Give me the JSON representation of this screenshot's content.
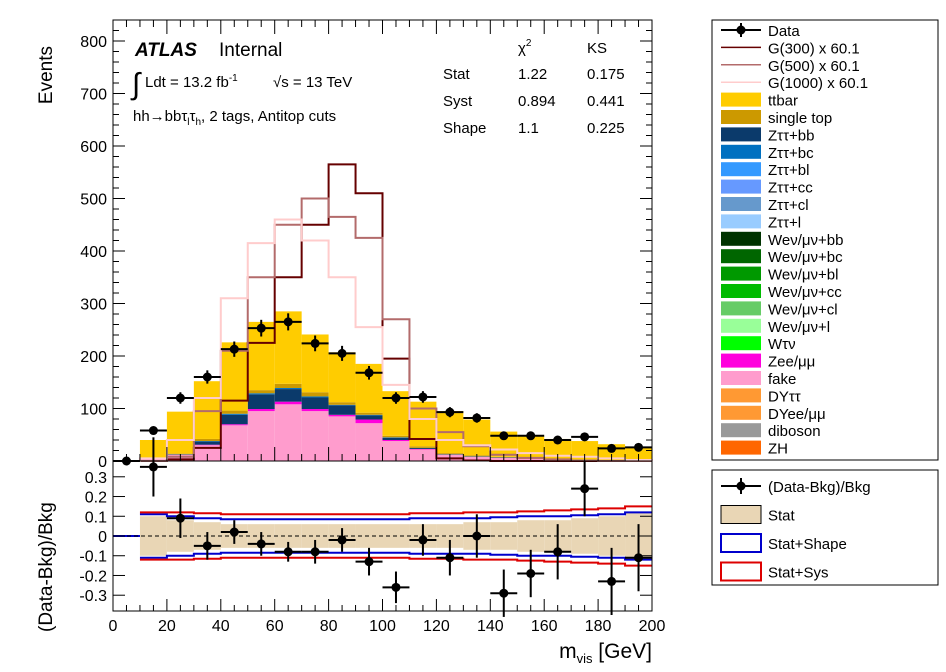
{
  "chart_data": [
    {
      "type": "bar",
      "panel": "main",
      "stacked": true,
      "ylabel": "Events",
      "ylim": [
        0,
        840
      ],
      "yticks": [
        0,
        100,
        200,
        300,
        400,
        500,
        600,
        700,
        800
      ],
      "x_bin_edges": [
        0,
        10,
        20,
        30,
        40,
        50,
        60,
        70,
        80,
        90,
        100,
        110,
        120,
        130,
        140,
        150,
        160,
        170,
        180,
        190,
        200
      ],
      "background_stack": [
        {
          "name": "fake",
          "color": "#ff9ccd",
          "values": [
            0,
            5,
            12,
            30,
            68,
            95,
            108,
            95,
            85,
            72,
            38,
            22,
            12,
            8,
            6,
            4,
            3,
            2,
            1,
            1
          ]
        },
        {
          "name": "Zee/μμ",
          "color": "#ff00dd",
          "values": [
            0,
            0,
            0,
            1,
            2,
            4,
            5,
            4,
            3,
            7,
            2,
            1,
            0,
            0,
            0,
            0,
            0,
            0,
            0,
            0
          ]
        },
        {
          "name": "Zττ+bb",
          "color": "#0b3a6b",
          "values": [
            0,
            0,
            1,
            6,
            18,
            28,
            24,
            22,
            18,
            8,
            4,
            2,
            1,
            1,
            1,
            0,
            0,
            0,
            0,
            0
          ]
        },
        {
          "name": "Zττ+bc",
          "color": "#0070c0",
          "values": [
            0,
            0,
            0,
            1,
            2,
            2,
            2,
            2,
            1,
            1,
            1,
            0,
            0,
            0,
            0,
            0,
            0,
            0,
            0,
            0
          ]
        },
        {
          "name": "single top",
          "color": "#cc9900",
          "values": [
            0,
            0,
            1,
            4,
            6,
            6,
            8,
            8,
            5,
            4,
            3,
            3,
            2,
            2,
            1,
            1,
            1,
            1,
            1,
            0
          ]
        },
        {
          "name": "ttbar",
          "color": "#ffcc00",
          "values": [
            0,
            35,
            80,
            110,
            130,
            130,
            138,
            110,
            95,
            93,
            85,
            85,
            80,
            68,
            48,
            43,
            38,
            35,
            30,
            26
          ]
        }
      ],
      "signals": [
        {
          "name": "G(300) x 60.1",
          "color": "#660000",
          "values": [
            0,
            0,
            3,
            25,
            115,
            225,
            350,
            450,
            565,
            510,
            195,
            42,
            5,
            1,
            0,
            0,
            0,
            0,
            0,
            0
          ]
        },
        {
          "name": "G(500) x 60.1",
          "color": "#b36b6b",
          "values": [
            0,
            0,
            8,
            95,
            210,
            350,
            450,
            500,
            465,
            425,
            270,
            100,
            55,
            28,
            12,
            6,
            3,
            1,
            0,
            0
          ]
        },
        {
          "name": "G(1000) x 60.1",
          "color": "#ffcccc",
          "values": [
            0,
            5,
            40,
            120,
            310,
            415,
            460,
            420,
            350,
            255,
            145,
            80,
            40,
            30,
            22,
            15,
            10,
            8,
            5,
            2
          ]
        }
      ],
      "data": {
        "name": "Data",
        "x": [
          5,
          15,
          25,
          35,
          45,
          55,
          65,
          75,
          85,
          95,
          105,
          115,
          125,
          135,
          145,
          155,
          165,
          175,
          185,
          195
        ],
        "values": [
          0,
          58,
          120,
          160,
          213,
          253,
          265,
          224,
          205,
          168,
          120,
          122,
          93,
          82,
          48,
          48,
          40,
          46,
          24,
          26
        ]
      },
      "legend": [
        "Data",
        "G(300) x 60.1",
        "G(500) x 60.1",
        "G(1000) x 60.1",
        "ttbar",
        "single top",
        "Zττ+bb",
        "Zττ+bc",
        "Zττ+bl",
        "Zττ+cc",
        "Zττ+cl",
        "Zττ+l",
        "Weν/μν+bb",
        "Weν/μν+bc",
        "Weν/μν+bl",
        "Weν/μν+cc",
        "Weν/μν+cl",
        "Weν/μν+l",
        "Wτν",
        "Zee/μμ",
        "fake",
        "DYττ",
        "DYee/μμ",
        "diboson",
        "ZH"
      ],
      "legend_colors": [
        "#000000",
        "#660000",
        "#b36b6b",
        "#ffcccc",
        "#ffcc00",
        "#cc9900",
        "#0b3a6b",
        "#0070c0",
        "#3399ff",
        "#6699ff",
        "#6699cc",
        "#99ccff",
        "#003300",
        "#006600",
        "#009900",
        "#00bb00",
        "#66cc66",
        "#99ff99",
        "#00ff00",
        "#ff00dd",
        "#ff9ccd",
        "#ff9933",
        "#ff9933",
        "#999999",
        "#ff6600"
      ]
    },
    {
      "type": "scatter",
      "panel": "ratio",
      "ylabel": "(Data-Bkg)/Bkg",
      "xlabel": "m",
      "xlabel_sub": "vis",
      "xlabel_unit": " [GeV]",
      "xlim": [
        0,
        200
      ],
      "ylim": [
        -0.38,
        0.38
      ],
      "xticks": [
        0,
        20,
        40,
        60,
        80,
        100,
        120,
        140,
        160,
        180,
        200
      ],
      "yticks": [
        -0.3,
        -0.2,
        -0.1,
        0,
        0.1,
        0.2,
        0.3
      ],
      "ratio": {
        "name": "(Data-Bkg)/Bkg",
        "x": [
          15,
          25,
          35,
          45,
          55,
          65,
          75,
          85,
          95,
          105,
          115,
          125,
          135,
          145,
          155,
          165,
          175,
          185,
          195
        ],
        "values": [
          0.35,
          0.09,
          -0.05,
          0.02,
          -0.04,
          -0.08,
          -0.08,
          -0.02,
          -0.13,
          -0.26,
          -0.02,
          -0.11,
          0.0,
          -0.29,
          -0.19,
          -0.08,
          0.24,
          -0.23,
          -0.11
        ],
        "errors": [
          0.15,
          0.1,
          0.07,
          0.06,
          0.06,
          0.05,
          0.06,
          0.06,
          0.07,
          0.08,
          0.08,
          0.09,
          0.11,
          0.12,
          0.12,
          0.14,
          0.14,
          0.17,
          0.17
        ]
      },
      "bands": [
        {
          "name": "Stat",
          "color": "#c8a27a",
          "values": [
            0.1,
            0.08,
            0.07,
            0.06,
            0.06,
            0.06,
            0.06,
            0.06,
            0.06,
            0.06,
            0.06,
            0.06,
            0.07,
            0.07,
            0.08,
            0.08,
            0.09,
            0.1,
            0.12
          ]
        },
        {
          "name": "Stat+Shape",
          "color": "#0000cc",
          "values": [
            0.11,
            0.1,
            0.09,
            0.085,
            0.085,
            0.085,
            0.085,
            0.085,
            0.085,
            0.085,
            0.09,
            0.09,
            0.09,
            0.095,
            0.1,
            0.1,
            0.105,
            0.11,
            0.12
          ]
        },
        {
          "name": "Stat+Sys",
          "color": "#dd0000",
          "values": [
            0.12,
            0.12,
            0.115,
            0.11,
            0.11,
            0.11,
            0.11,
            0.11,
            0.11,
            0.11,
            0.115,
            0.115,
            0.12,
            0.12,
            0.125,
            0.13,
            0.135,
            0.14,
            0.15
          ]
        }
      ],
      "legend": [
        "(Data-Bkg)/Bkg",
        "Stat",
        "Stat+Shape",
        "Stat+Sys"
      ]
    }
  ],
  "annotations": {
    "atlas": "ATLAS",
    "internal": "Internal",
    "lumi": "Ldt = 13.2 fb",
    "lumi_sup": "-1",
    "energy": "√s = 13 TeV",
    "channel_prefix": "hh→bbτ",
    "channel_sub1": "l",
    "channel_mid": "τ",
    "channel_sub2": "h",
    "channel_suffix": ", 2 tags, Antitop cuts"
  },
  "gof_table": {
    "col_chi2": "χ",
    "col_chi2_sup": "2",
    "col_ks": "KS",
    "rows": [
      {
        "label": "Stat",
        "chi2": "1.22",
        "ks": "0.175"
      },
      {
        "label": "Syst",
        "chi2": "0.894",
        "ks": "0.441"
      },
      {
        "label": "Shape",
        "chi2": "1.1",
        "ks": "0.225"
      }
    ]
  }
}
